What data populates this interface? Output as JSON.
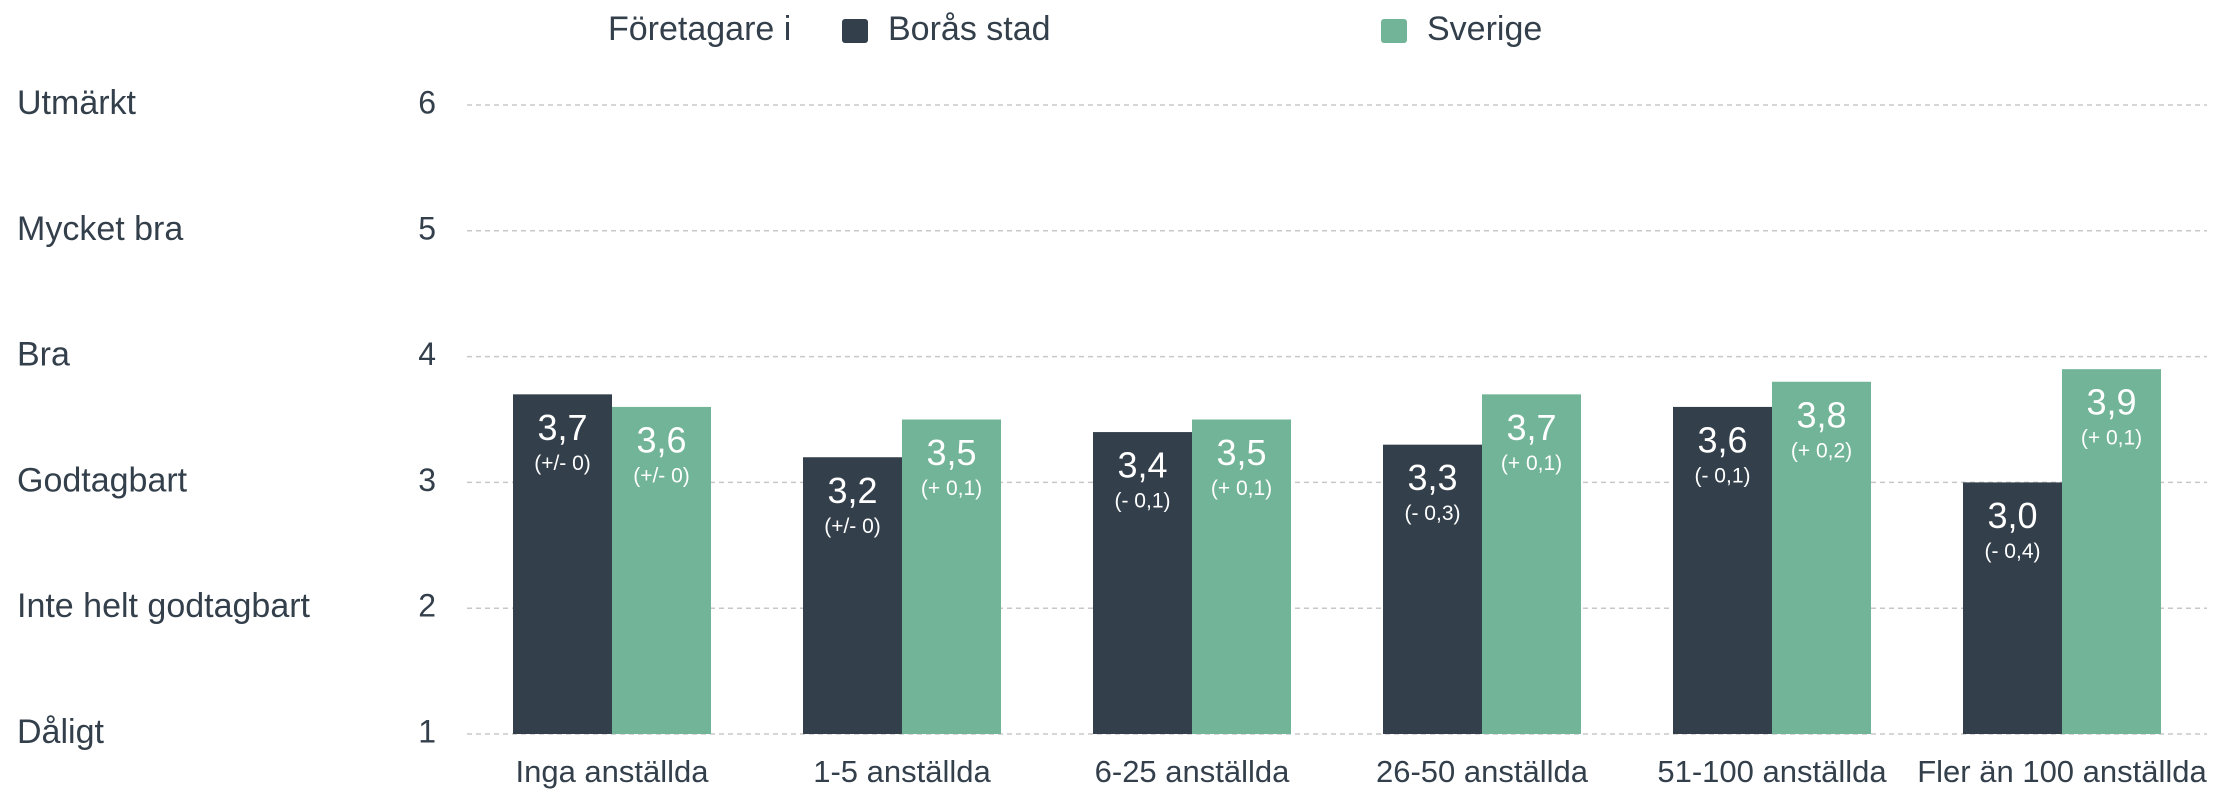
{
  "chart_data": {
    "type": "bar",
    "legend_title": "Företagare i",
    "categories": [
      "Inga anställda",
      "1-5 anställda",
      "6-25 anställda",
      "26-50 anställda",
      "51-100 anställda",
      "Fler än 100 anställda"
    ],
    "series": [
      {
        "name": "Borås stad",
        "color": "#333f4b",
        "values": [
          3.7,
          3.2,
          3.4,
          3.3,
          3.6,
          3.0
        ],
        "value_labels": [
          "3,7",
          "3,2",
          "3,4",
          "3,3",
          "3,6",
          "3,0"
        ],
        "change_labels": [
          "(+/- 0)",
          "(+/- 0)",
          "(- 0,1)",
          "(- 0,3)",
          "(- 0,1)",
          "(- 0,4)"
        ]
      },
      {
        "name": "Sverige",
        "color": "#72b497",
        "values": [
          3.6,
          3.5,
          3.5,
          3.7,
          3.8,
          3.9
        ],
        "value_labels": [
          "3,6",
          "3,5",
          "3,5",
          "3,7",
          "3,8",
          "3,9"
        ],
        "change_labels": [
          "(+/- 0)",
          "(+ 0,1)",
          "(+ 0,1)",
          "(+ 0,1)",
          "(+ 0,2)",
          "(+ 0,1)"
        ]
      }
    ],
    "ylim": [
      1,
      6
    ],
    "yticks": [
      1,
      2,
      3,
      4,
      5,
      6
    ],
    "ytick_names": [
      "Dåligt",
      "Inte helt godtagbart",
      "Godtagbart",
      "Bra",
      "Mycket bra",
      "Utmärkt"
    ],
    "grid": true
  }
}
